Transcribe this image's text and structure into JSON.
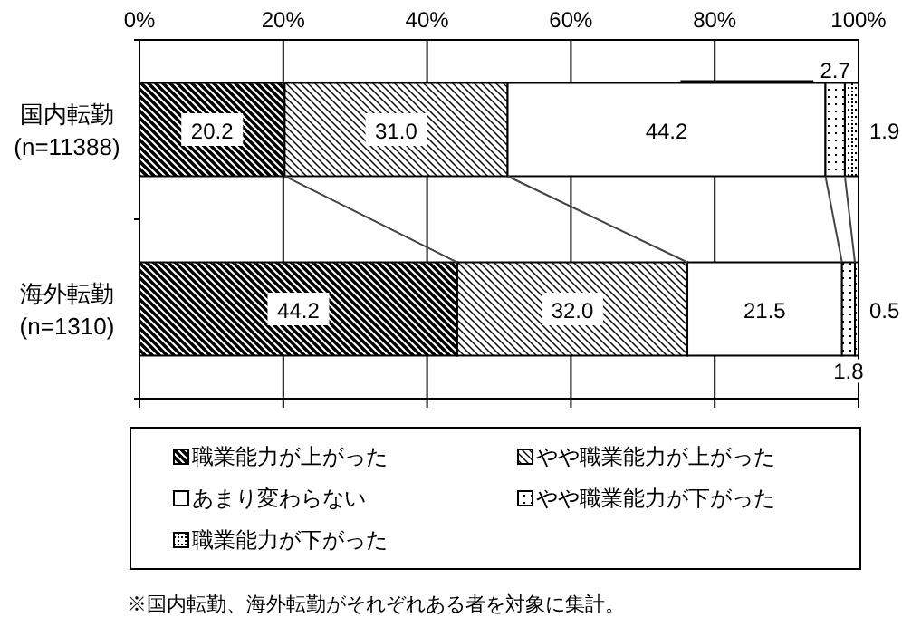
{
  "chart_data": {
    "type": "bar",
    "orientation": "horizontal",
    "stacked": true,
    "categories": [
      "国内転勤\n(n=11388)",
      "海外転勤\n(n=1310)"
    ],
    "series": [
      {
        "name": "職業能力が上がった",
        "color": "#000000",
        "values": [
          20.2,
          44.2
        ],
        "value_labels": [
          "20.2",
          "44.2"
        ]
      },
      {
        "name": "やや職業能力が上がった",
        "color": "#000000",
        "values": [
          31.0,
          32.0
        ],
        "value_labels": [
          "31.0",
          "32.0"
        ]
      },
      {
        "name": "あまり変わらない",
        "color": "#000000",
        "values": [
          44.2,
          21.5
        ],
        "value_labels": [
          "44.2",
          "21.5"
        ]
      },
      {
        "name": "やや職業能力が下がった",
        "color": "#000000",
        "values": [
          2.7,
          1.8
        ],
        "value_labels": [
          "2.7",
          "1.8"
        ]
      },
      {
        "name": "職業能力が下がった",
        "color": "#000000",
        "values": [
          1.9,
          0.5
        ],
        "value_labels": [
          "1.9",
          "0.5"
        ]
      }
    ],
    "xlim": [
      0,
      100
    ],
    "xticks": [
      {
        "value": 0,
        "label": "0%"
      },
      {
        "value": 20,
        "label": "20%"
      },
      {
        "value": 40,
        "label": "40%"
      },
      {
        "value": 60,
        "label": "60%"
      },
      {
        "value": 80,
        "label": "80%"
      },
      {
        "value": 100,
        "label": "100%"
      }
    ],
    "grid": "x",
    "legend": "bottom",
    "annotations": [
      "※国内転勤、海外転勤がそれぞれある者を対象に集計。"
    ]
  }
}
